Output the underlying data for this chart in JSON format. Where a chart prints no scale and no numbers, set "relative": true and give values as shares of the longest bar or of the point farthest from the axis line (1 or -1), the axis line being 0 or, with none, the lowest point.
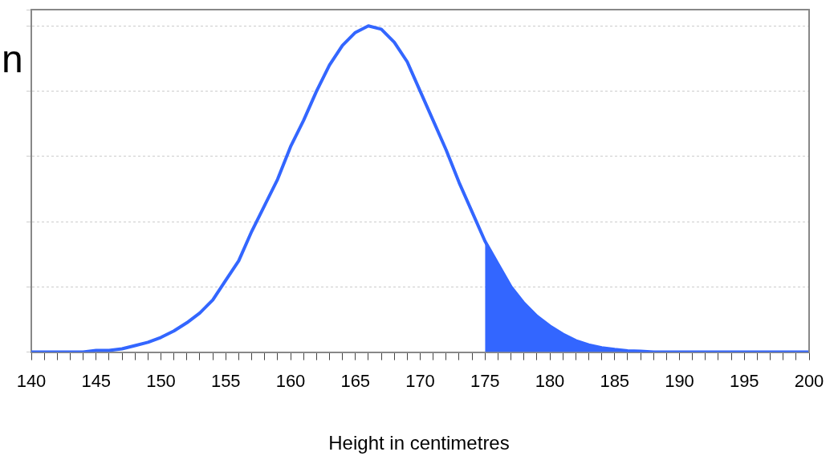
{
  "chart_data": {
    "type": "line",
    "xlabel": "Height in centimetres",
    "relative": true,
    "grid": "y",
    "legend": false,
    "marker": "none",
    "line_style": "solid",
    "annotations": [
      "n"
    ],
    "xlim": [
      140,
      200
    ],
    "xticks": [
      140,
      {
        "value": 141,
        "label": null
      },
      {
        "value": 142,
        "label": null
      },
      {
        "value": 143,
        "label": null
      },
      {
        "value": 144,
        "label": null
      },
      145,
      {
        "value": 146,
        "label": null
      },
      {
        "value": 147,
        "label": null
      },
      {
        "value": 148,
        "label": null
      },
      {
        "value": 149,
        "label": null
      },
      150,
      {
        "value": 151,
        "label": null
      },
      {
        "value": 152,
        "label": null
      },
      {
        "value": 153,
        "label": null
      },
      {
        "value": 154,
        "label": null
      },
      155,
      {
        "value": 156,
        "label": null
      },
      {
        "value": 157,
        "label": null
      },
      {
        "value": 158,
        "label": null
      },
      {
        "value": 159,
        "label": null
      },
      160,
      {
        "value": 161,
        "label": null
      },
      {
        "value": 162,
        "label": null
      },
      {
        "value": 163,
        "label": null
      },
      {
        "value": 164,
        "label": null
      },
      165,
      {
        "value": 166,
        "label": null
      },
      {
        "value": 167,
        "label": null
      },
      {
        "value": 168,
        "label": null
      },
      {
        "value": 169,
        "label": null
      },
      170,
      {
        "value": 171,
        "label": null
      },
      {
        "value": 172,
        "label": null
      },
      {
        "value": 173,
        "label": null
      },
      {
        "value": 174,
        "label": null
      },
      175,
      {
        "value": 176,
        "label": null
      },
      {
        "value": 177,
        "label": null
      },
      {
        "value": 178,
        "label": null
      },
      {
        "value": 179,
        "label": null
      },
      180,
      {
        "value": 181,
        "label": null
      },
      {
        "value": 182,
        "label": null
      },
      {
        "value": 183,
        "label": null
      },
      {
        "value": 184,
        "label": null
      },
      185,
      {
        "value": 186,
        "label": null
      },
      {
        "value": 187,
        "label": null
      },
      {
        "value": 188,
        "label": null
      },
      {
        "value": 189,
        "label": null
      },
      190,
      {
        "value": 191,
        "label": null
      },
      {
        "value": 192,
        "label": null
      },
      {
        "value": 193,
        "label": null
      },
      {
        "value": 194,
        "label": null
      },
      195,
      {
        "value": 196,
        "label": null
      },
      {
        "value": 197,
        "label": null
      },
      {
        "value": 198,
        "label": null
      },
      {
        "value": 199,
        "label": null
      },
      200
    ],
    "series": [
      {
        "color": "#3366ff",
        "x": [
          140,
          144,
          145,
          146,
          147,
          148,
          149,
          150,
          151,
          152,
          153,
          154,
          155,
          156,
          157,
          158,
          159,
          160,
          161,
          162,
          163,
          164,
          165,
          166,
          167,
          168,
          169,
          170,
          171,
          172,
          173,
          174,
          175,
          176,
          177,
          178,
          179,
          180,
          181,
          182,
          183,
          184,
          185,
          186,
          187,
          188,
          200
        ],
        "values": [
          0,
          0,
          0.005,
          0.005,
          0.01,
          0.02,
          0.03,
          0.045,
          0.065,
          0.09,
          0.12,
          0.16,
          0.22,
          0.28,
          0.37,
          0.45,
          0.53,
          0.63,
          0.71,
          0.8,
          0.88,
          0.94,
          0.98,
          1,
          0.99,
          0.95,
          0.89,
          0.8,
          0.71,
          0.62,
          0.52,
          0.43,
          0.34,
          0.27,
          0.2,
          0.15,
          0.11,
          0.08,
          0.055,
          0.035,
          0.022,
          0.013,
          0.008,
          0.004,
          0.003,
          0,
          0
        ]
      },
      {
        "type": "area",
        "color": "#3366ff",
        "x": [
          175,
          176,
          177,
          178,
          179,
          180,
          181,
          182,
          183,
          184,
          185,
          186,
          187,
          188,
          200
        ],
        "values": [
          0.34,
          0.27,
          0.2,
          0.15,
          0.11,
          0.08,
          0.055,
          0.035,
          0.022,
          0.013,
          0.008,
          0.004,
          0.003,
          0,
          0
        ]
      }
    ]
  }
}
